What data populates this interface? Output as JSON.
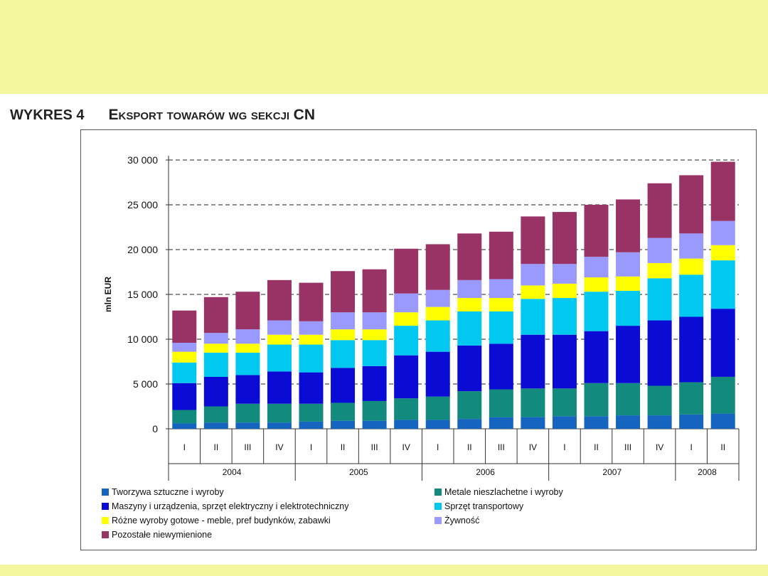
{
  "header": {
    "figure_number": "WYKRES 4",
    "title": "Eksport towarów wg sekcji CN"
  },
  "chart_data": {
    "type": "bar",
    "stacked": true,
    "ylabel": "mln EUR",
    "ylim": [
      0,
      30000
    ],
    "yticks": [
      0,
      5000,
      10000,
      15000,
      20000,
      25000,
      30000
    ],
    "ytick_labels": [
      "0",
      "5 000",
      "10 000",
      "15 000",
      "20 000",
      "25 000",
      "30 000"
    ],
    "grid": "horizontal dashed",
    "categories": [
      "I",
      "II",
      "III",
      "IV",
      "I",
      "II",
      "III",
      "IV",
      "I",
      "II",
      "III",
      "IV",
      "I",
      "II",
      "III",
      "IV",
      "I",
      "II"
    ],
    "year_groups": [
      {
        "label": "2004",
        "count": 4
      },
      {
        "label": "2005",
        "count": 4
      },
      {
        "label": "2006",
        "count": 4
      },
      {
        "label": "2007",
        "count": 4
      },
      {
        "label": "2008",
        "count": 2
      }
    ],
    "series": [
      {
        "name": "Tworzywa sztuczne i wyroby",
        "color": "#1565c0",
        "values": [
          600,
          700,
          700,
          700,
          800,
          900,
          900,
          1000,
          1000,
          1100,
          1300,
          1300,
          1400,
          1400,
          1500,
          1500,
          1600,
          1700
        ]
      },
      {
        "name": "Metale nieszlachetne i wyroby",
        "color": "#138a7e",
        "values": [
          1500,
          1800,
          2100,
          2100,
          2000,
          2000,
          2200,
          2400,
          2600,
          3100,
          3100,
          3200,
          3100,
          3700,
          3600,
          3300,
          3600,
          4100
        ]
      },
      {
        "name": "Maszyny i urządzenia, sprzęt elektryczny i elektrotechniczny",
        "color": "#0b0bd6",
        "values": [
          3000,
          3300,
          3200,
          3600,
          3500,
          3900,
          3900,
          4800,
          5000,
          5100,
          5100,
          6000,
          6000,
          5800,
          6400,
          7300,
          7300,
          7600
        ]
      },
      {
        "name": "Sprzęt transportowy",
        "color": "#00c8f0",
        "values": [
          2300,
          2700,
          2500,
          3000,
          3100,
          3100,
          2900,
          3300,
          3500,
          3800,
          3600,
          4000,
          4100,
          4400,
          3900,
          4700,
          4700,
          5400
        ]
      },
      {
        "name": "Różne wyroby gotowe - meble, pref budynków, zabawki",
        "color": "#ffff00",
        "values": [
          1200,
          1000,
          1000,
          1100,
          1100,
          1200,
          1200,
          1500,
          1500,
          1500,
          1500,
          1500,
          1600,
          1600,
          1600,
          1700,
          1800,
          1700
        ]
      },
      {
        "name": "Żywność",
        "color": "#9999ff",
        "values": [
          1000,
          1200,
          1600,
          1600,
          1500,
          1900,
          1900,
          2100,
          1900,
          2000,
          2100,
          2400,
          2200,
          2300,
          2700,
          2800,
          2800,
          2700
        ]
      },
      {
        "name": "Pozostałe niewymienione",
        "color": "#993366",
        "values": [
          3600,
          4000,
          4200,
          4500,
          4300,
          4600,
          4800,
          5000,
          5100,
          5200,
          5300,
          5300,
          5800,
          5800,
          5900,
          6100,
          6500,
          6600
        ]
      }
    ],
    "legend_placement": "bottom, two columns"
  }
}
